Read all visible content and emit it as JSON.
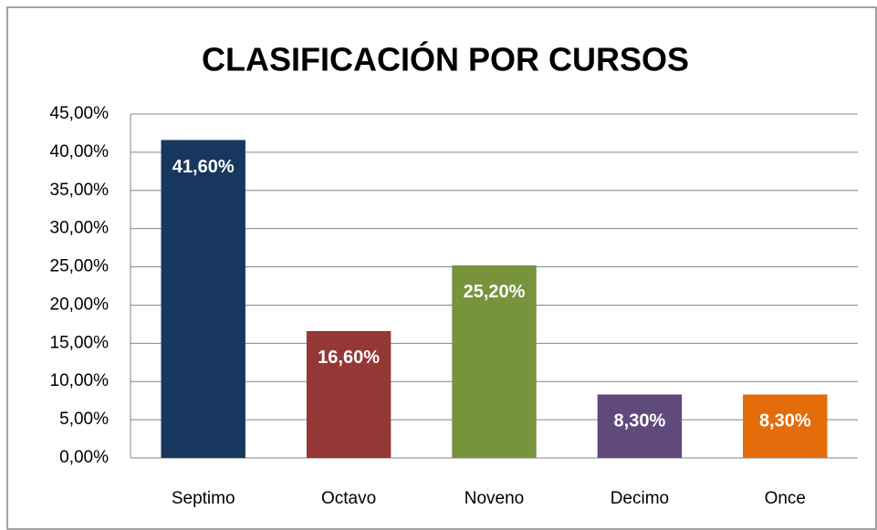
{
  "chart_data": {
    "type": "bar",
    "title": "CLASIFICACIÓN POR CURSOS",
    "categories": [
      "Septimo",
      "Octavo",
      "Noveno",
      "Decimo",
      "Once"
    ],
    "values": [
      41.6,
      16.6,
      25.2,
      8.3,
      8.3
    ],
    "value_labels": [
      "41,60%",
      "16,60%",
      "25,20%",
      "8,30%",
      "8,30%"
    ],
    "colors": [
      "#17375e",
      "#953735",
      "#77933c",
      "#604a7b",
      "#e46c0a"
    ],
    "ylim": [
      0,
      45
    ],
    "yticks": [
      {
        "value": 0,
        "label": "0,00%"
      },
      {
        "value": 5,
        "label": "5,00%"
      },
      {
        "value": 10,
        "label": "10,00%"
      },
      {
        "value": 15,
        "label": "15,00%"
      },
      {
        "value": 20,
        "label": "20,00%"
      },
      {
        "value": 25,
        "label": "25,00%"
      },
      {
        "value": 30,
        "label": "30,00%"
      },
      {
        "value": 35,
        "label": "35,00%"
      },
      {
        "value": 40,
        "label": "40,00%"
      },
      {
        "value": 45,
        "label": "45,00%"
      }
    ],
    "grid": true
  }
}
